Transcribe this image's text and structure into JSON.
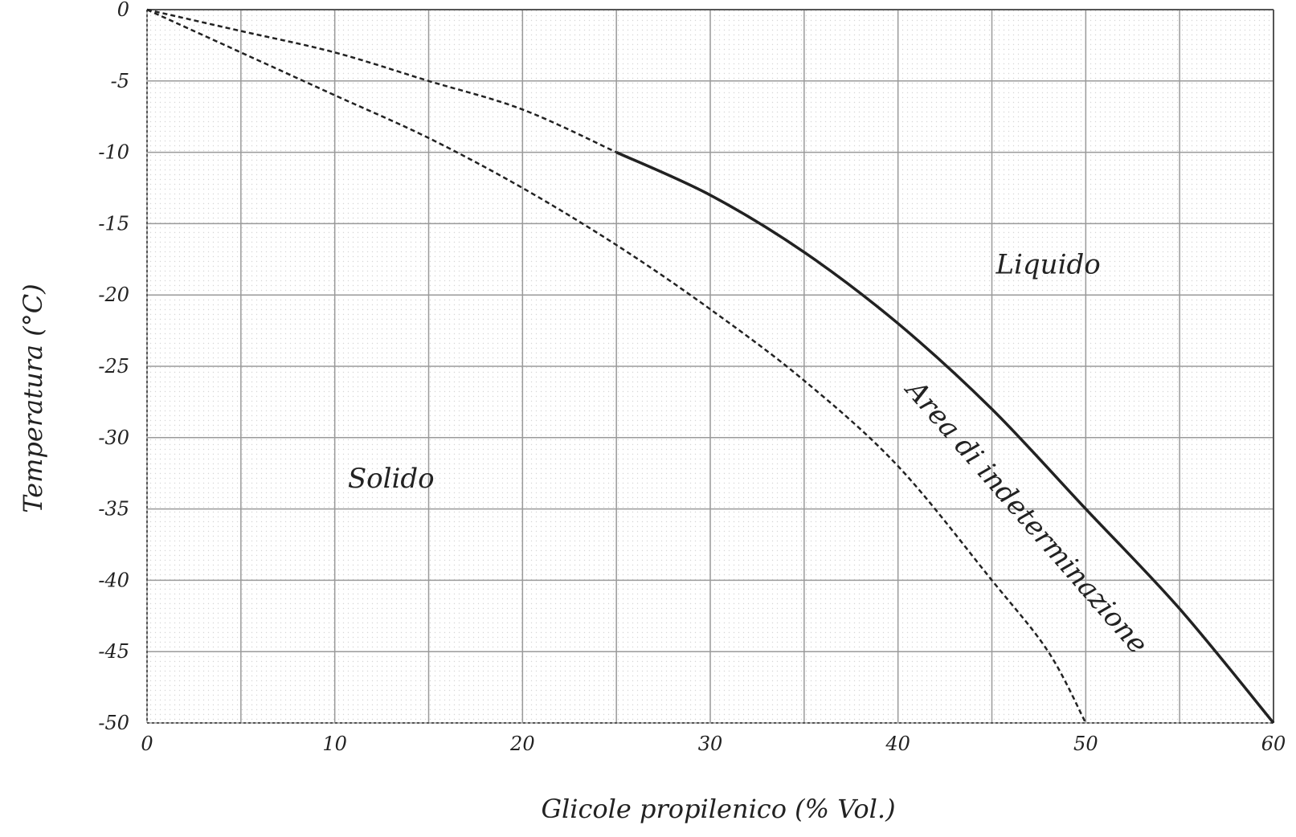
{
  "chart_data": {
    "type": "line",
    "title": "",
    "xlabel": "Glicole propilenico (% Vol.)",
    "ylabel": "Temperatura (°C)",
    "xlim": [
      0,
      60
    ],
    "ylim": [
      -50,
      0
    ],
    "x_ticks": [
      0,
      10,
      20,
      30,
      40,
      50,
      60
    ],
    "x_tick_labels": [
      "0",
      "10",
      "20",
      "30",
      "40",
      "50",
      "60"
    ],
    "y_ticks": [
      0,
      -5,
      -10,
      -15,
      -20,
      -25,
      -30,
      -35,
      -40,
      -45,
      -50
    ],
    "y_tick_labels": [
      "0",
      "-5",
      "-10",
      "-15",
      "-20",
      "-25",
      "-30",
      "-35",
      "-40",
      "-45",
      "-50"
    ],
    "x_grid_step": 5,
    "y_grid_step": 5,
    "grid": true,
    "series": [
      {
        "name": "",
        "style": "solid-dashed",
        "color": "#222222",
        "x": [
          0,
          5,
          10,
          15,
          20,
          25,
          30,
          35,
          40,
          45,
          50,
          55,
          60
        ],
        "y": [
          0,
          -1.5,
          -3,
          -5,
          -7,
          -10,
          -13,
          -17,
          -22,
          -28,
          -35,
          -42,
          -50
        ]
      },
      {
        "name": "",
        "style": "dashed",
        "color": "#222222",
        "x": [
          0,
          5,
          10,
          15,
          20,
          25,
          30,
          35,
          40,
          45,
          48,
          50
        ],
        "y": [
          0,
          -3,
          -6,
          -9,
          -12.5,
          -16.5,
          -21,
          -26,
          -32,
          -40,
          -45,
          -50
        ]
      }
    ],
    "annotations": [
      {
        "text": "Liquido",
        "x": 48,
        "y": -18.5,
        "rotate": 0
      },
      {
        "text": "Solido",
        "x": 13,
        "y": -33.5,
        "rotate": 0
      },
      {
        "text": "Area di indeterminazione",
        "x": 46.5,
        "y": -36,
        "rotate": 49
      }
    ]
  }
}
